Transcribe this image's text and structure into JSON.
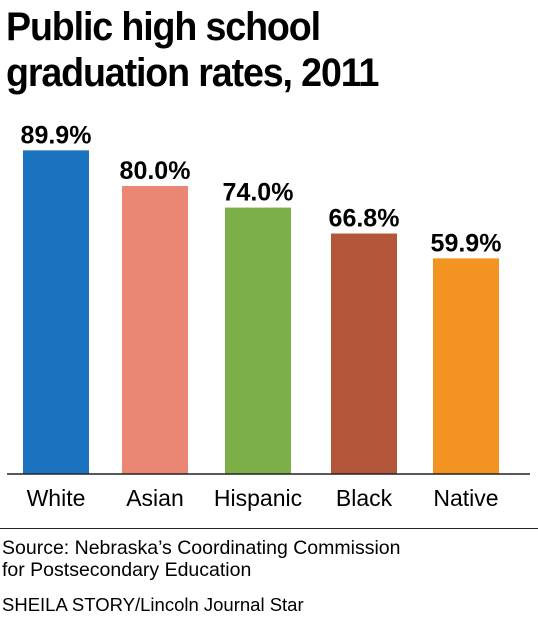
{
  "title": "Public high school graduation rates, 2011",
  "chart_data": {
    "type": "bar",
    "title": "Public high school graduation rates, 2011",
    "xlabel": "",
    "ylabel": "",
    "categories": [
      "White",
      "Asian",
      "Hispanic",
      "Black",
      "Native"
    ],
    "values": [
      89.9,
      80.0,
      74.0,
      66.8,
      59.9
    ],
    "value_labels": [
      "89.9%",
      "80.0%",
      "74.0%",
      "66.8%",
      "59.9%"
    ],
    "ylim": [
      0,
      100
    ],
    "grid": false,
    "legend": "none",
    "colors": [
      "#1b72bf",
      "#ea8774",
      "#7daf49",
      "#b35538",
      "#f39321"
    ]
  },
  "source": "Source: Nebraska’s Coordinating Commission\nfor Postsecondary Education",
  "credit": "SHEILA STORY/Lincoln Journal Star"
}
